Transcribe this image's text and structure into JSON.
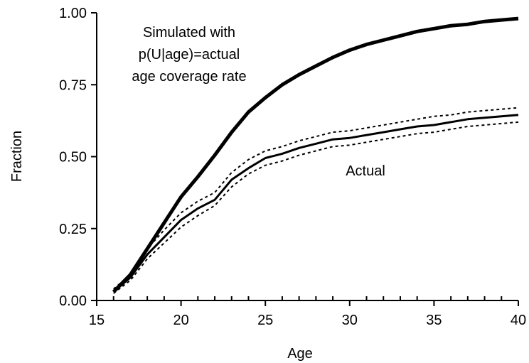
{
  "chart_data": {
    "type": "line",
    "title": "",
    "xlabel": "Age",
    "ylabel": "Fraction",
    "xlim": [
      15,
      40
    ],
    "ylim": [
      0,
      1
    ],
    "x_ticks": [
      15,
      20,
      25,
      30,
      35,
      40
    ],
    "x_tick_labels": [
      "15",
      "20",
      "25",
      "30",
      "35",
      "40"
    ],
    "x_minor_step": 1,
    "y_ticks": [
      0,
      0.25,
      0.5,
      0.75,
      1.0
    ],
    "y_tick_labels": [
      "0.00",
      "0.25",
      "0.50",
      "0.75",
      "1.00"
    ],
    "grid": false,
    "legend": "none",
    "annotations": {
      "simulated": [
        "Simulated with",
        "p(U|age)=actual",
        "age coverage rate"
      ],
      "actual": "Actual"
    },
    "x": [
      16,
      17,
      18,
      19,
      20,
      21,
      22,
      23,
      24,
      25,
      26,
      27,
      28,
      29,
      30,
      31,
      32,
      33,
      34,
      35,
      36,
      37,
      38,
      39,
      40
    ],
    "series": [
      {
        "role": "simulated",
        "style": "thick",
        "values": [
          0.03,
          0.09,
          0.18,
          0.27,
          0.36,
          0.43,
          0.505,
          0.585,
          0.655,
          0.705,
          0.75,
          0.785,
          0.815,
          0.845,
          0.87,
          0.89,
          0.905,
          0.92,
          0.935,
          0.945,
          0.955,
          0.96,
          0.97,
          0.975,
          0.98
        ]
      },
      {
        "role": "actual",
        "style": "solid",
        "values": [
          0.03,
          0.08,
          0.16,
          0.22,
          0.28,
          0.32,
          0.35,
          0.42,
          0.46,
          0.495,
          0.51,
          0.53,
          0.545,
          0.56,
          0.565,
          0.575,
          0.585,
          0.595,
          0.605,
          0.61,
          0.62,
          0.63,
          0.635,
          0.64,
          0.645
        ]
      },
      {
        "role": "actual-upper",
        "style": "dotted",
        "values": [
          0.04,
          0.09,
          0.18,
          0.245,
          0.305,
          0.345,
          0.375,
          0.445,
          0.49,
          0.52,
          0.535,
          0.555,
          0.57,
          0.585,
          0.59,
          0.6,
          0.61,
          0.62,
          0.63,
          0.64,
          0.645,
          0.655,
          0.66,
          0.665,
          0.67
        ]
      },
      {
        "role": "actual-lower",
        "style": "dotted",
        "values": [
          0.025,
          0.07,
          0.145,
          0.2,
          0.255,
          0.295,
          0.33,
          0.395,
          0.44,
          0.47,
          0.485,
          0.505,
          0.52,
          0.535,
          0.54,
          0.55,
          0.56,
          0.57,
          0.58,
          0.585,
          0.595,
          0.605,
          0.61,
          0.615,
          0.62
        ]
      }
    ]
  }
}
